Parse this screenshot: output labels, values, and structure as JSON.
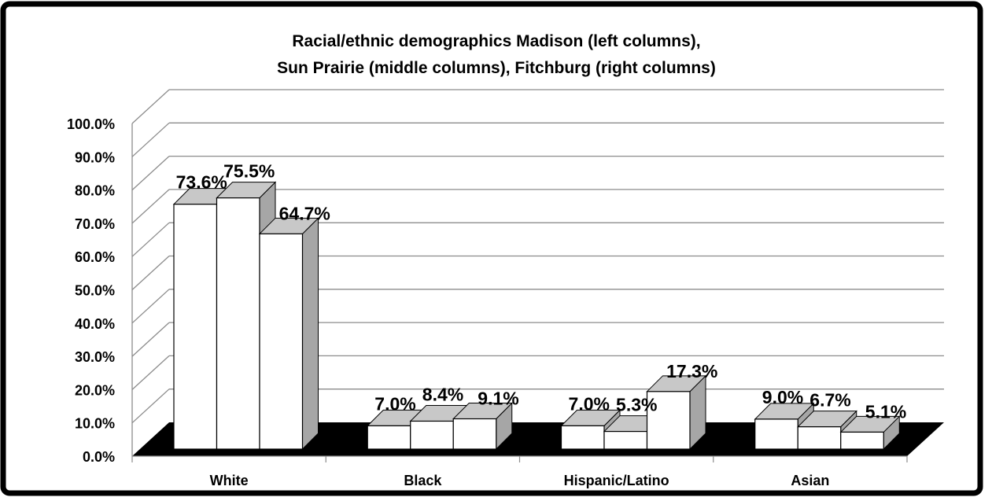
{
  "chart_data": {
    "type": "bar",
    "style": "3d-clustered-column",
    "title_lines": [
      "Racial/ethnic demographics Madison (left columns),",
      "Sun Prairie (middle columns), Fitchburg (right columns)"
    ],
    "categories": [
      "White",
      "Black",
      "Hispanic/Latino",
      "Asian"
    ],
    "series": [
      {
        "values": [
          73.6,
          7.0,
          7.0,
          9.0
        ],
        "labels": [
          "73.6%",
          "7.0%",
          "7.0%",
          "9.0%"
        ]
      },
      {
        "values": [
          75.5,
          8.4,
          5.3,
          6.7
        ],
        "labels": [
          "75.5%",
          "8.4%",
          "5.3%",
          "6.7%"
        ]
      },
      {
        "values": [
          64.7,
          9.1,
          17.3,
          5.1
        ],
        "labels": [
          "64.7%",
          "9.1%",
          "17.3%",
          "5.1%"
        ]
      }
    ],
    "y_ticks": [
      "0.0%",
      "10.0%",
      "20.0%",
      "30.0%",
      "40.0%",
      "50.0%",
      "60.0%",
      "70.0%",
      "80.0%",
      "90.0%",
      "100.0%"
    ],
    "ylim": [
      0,
      100
    ],
    "grid": true,
    "legend": "none",
    "colors": {
      "bar_front": "#ffffff",
      "bar_top": "#c8c8c8",
      "bar_side": "#a6a6a6",
      "floor": "#000000",
      "gridline": "#8c8c8c",
      "frame": "#000000"
    }
  }
}
